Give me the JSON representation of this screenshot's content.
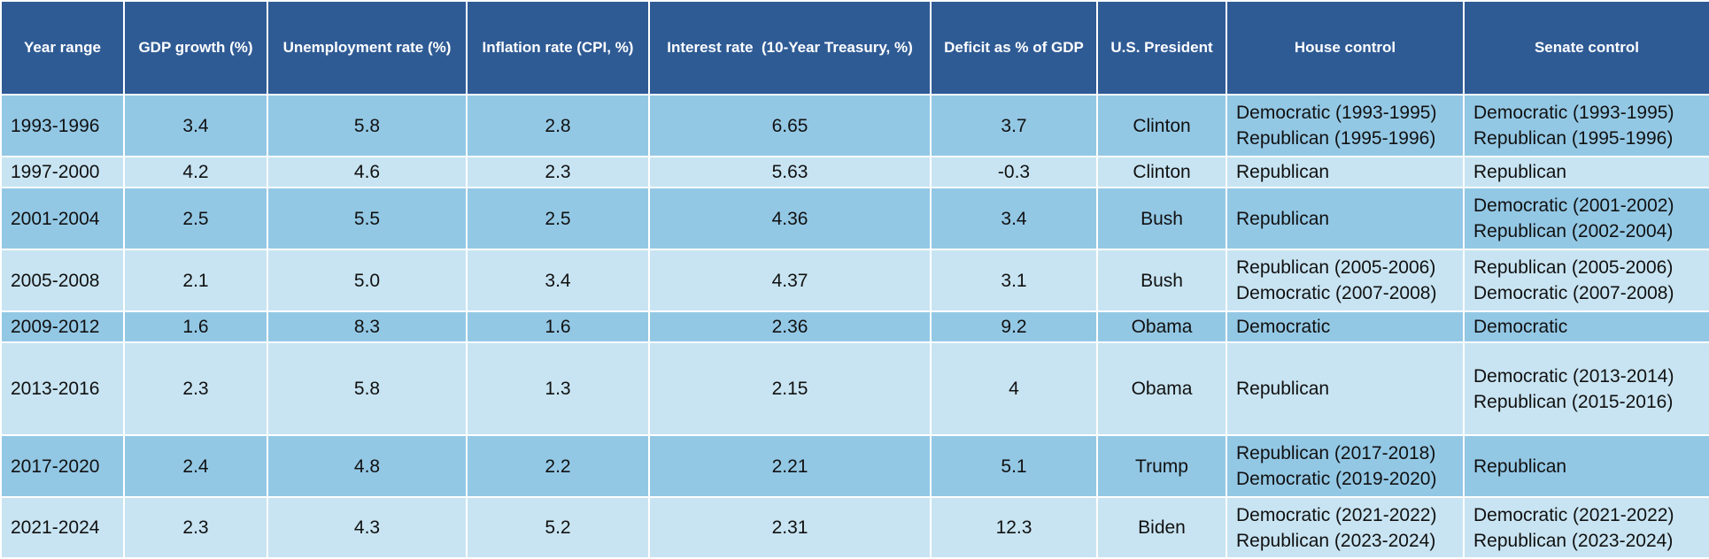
{
  "table": {
    "headers": [
      "Year range",
      "GDP growth (%)",
      "Unemployment rate (%)",
      "Inflation rate (CPI, %)",
      "Interest rate  (10-Year Treasury, %)",
      "Deficit as % of GDP",
      "U.S. President",
      "House control",
      "Senate control"
    ],
    "rows": [
      {
        "year_range": "1993-1996",
        "gdp_growth": "3.4",
        "unemployment": "5.8",
        "inflation": "2.8",
        "interest_rate": "6.65",
        "deficit": "3.7",
        "president": "Clinton",
        "house": [
          "Democratic (1993-1995)",
          "Republican (1995-1996)"
        ],
        "senate": [
          "Democratic (1993-1995)",
          "Republican (1995-1996)"
        ]
      },
      {
        "year_range": "1997-2000",
        "gdp_growth": "4.2",
        "unemployment": "4.6",
        "inflation": "2.3",
        "interest_rate": "5.63",
        "deficit": "-0.3",
        "president": "Clinton",
        "house": [
          "Republican"
        ],
        "senate": [
          "Republican"
        ]
      },
      {
        "year_range": "2001-2004",
        "gdp_growth": "2.5",
        "unemployment": "5.5",
        "inflation": "2.5",
        "interest_rate": "4.36",
        "deficit": "3.4",
        "president": "Bush",
        "house": [
          "Republican"
        ],
        "senate": [
          "Democratic (2001-2002)",
          "Republican (2002-2004)"
        ]
      },
      {
        "year_range": "2005-2008",
        "gdp_growth": "2.1",
        "unemployment": "5.0",
        "inflation": "3.4",
        "interest_rate": "4.37",
        "deficit": "3.1",
        "president": "Bush",
        "house": [
          "Republican (2005-2006)",
          "Democratic (2007-2008)"
        ],
        "senate": [
          "Republican (2005-2006)",
          "Democratic (2007-2008)"
        ]
      },
      {
        "year_range": "2009-2012",
        "gdp_growth": "1.6",
        "unemployment": "8.3",
        "inflation": "1.6",
        "interest_rate": "2.36",
        "deficit": "9.2",
        "president": "Obama",
        "house": [
          "Democratic"
        ],
        "senate": [
          "Democratic"
        ]
      },
      {
        "year_range": "2013-2016",
        "gdp_growth": "2.3",
        "unemployment": "5.8",
        "inflation": "1.3",
        "interest_rate": "2.15",
        "deficit": "4",
        "president": "Obama",
        "house": [
          "Republican"
        ],
        "senate": [
          "Democratic (2013-2014)",
          "Republican (2015-2016)"
        ]
      },
      {
        "year_range": "2017-2020",
        "gdp_growth": "2.4",
        "unemployment": "4.8",
        "inflation": "2.2",
        "interest_rate": "2.21",
        "deficit": "5.1",
        "president": "Trump",
        "house": [
          "Republican (2017-2018)",
          "Democratic (2019-2020)"
        ],
        "senate": [
          "Republican"
        ]
      },
      {
        "year_range": "2021-2024",
        "gdp_growth": "2.3",
        "unemployment": "4.3",
        "inflation": "5.2",
        "interest_rate": "2.31",
        "deficit": "12.3",
        "president": "Biden",
        "house": [
          "Democratic (2021-2022)",
          "Republican (2023-2024)"
        ],
        "senate": [
          "Democratic (2021-2022)",
          "Republican (2023-2024)"
        ]
      }
    ]
  },
  "colors": {
    "header_bg": "#2f5b95",
    "header_text": "#ffffff",
    "row_dark": "#93c8e5",
    "row_light": "#c8e4f2",
    "border": "#ffffff"
  }
}
